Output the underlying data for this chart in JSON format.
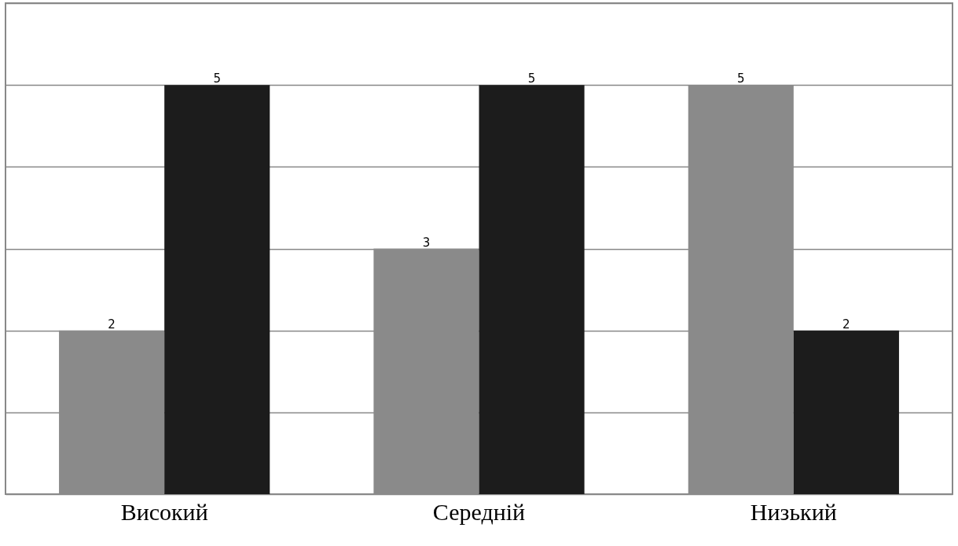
{
  "chart_data": {
    "type": "bar",
    "categories": [
      "Високий",
      "Середній",
      "Низький"
    ],
    "series": [
      {
        "color": "#8a8a8a",
        "values": [
          2,
          3,
          5
        ]
      },
      {
        "color": "#1c1c1c",
        "values": [
          5,
          5,
          2
        ]
      }
    ],
    "ylim": [
      0,
      6
    ],
    "yticks": [
      0,
      {
        "value": 1,
        "label": null
      },
      {
        "value": 2,
        "label": null
      },
      {
        "value": 3,
        "label": null
      },
      {
        "value": 4,
        "label": null
      },
      {
        "value": 5,
        "label": null
      },
      {
        "value": 6,
        "label": null
      }
    ],
    "grid": "y",
    "tick_labels": "x",
    "data_labels": true,
    "legend": false
  }
}
